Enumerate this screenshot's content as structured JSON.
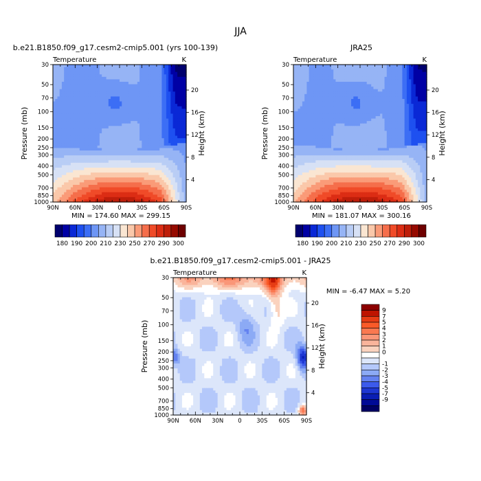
{
  "figure": {
    "title": "JJA"
  },
  "lat_ticks": [
    "90N",
    "60N",
    "30N",
    "0",
    "30S",
    "60S",
    "90S"
  ],
  "pressure_ticks": [
    "30",
    "50",
    "70",
    "100",
    "150",
    "200",
    "250",
    "300",
    "400",
    "500",
    "700",
    "850",
    "1000"
  ],
  "height_ticks": [
    "20",
    "16",
    "12",
    "8",
    "4"
  ],
  "panels": {
    "model": {
      "title": "b.e21.B1850.f09_g17.cesm2-cmip5.001 (yrs 100-139)",
      "left_label": "Temperature",
      "units": "K",
      "ylabel_left": "Pressure (mb)",
      "ylabel_right": "Height (km)",
      "stats": "MIN = 174.60   MAX = 299.15"
    },
    "obs": {
      "title": "JRA25",
      "left_label": "Temperature",
      "units": "K",
      "ylabel_left": "Pressure (mb)",
      "ylabel_right": "Height (km)",
      "stats": "MIN = 181.07   MAX = 300.16"
    },
    "diff": {
      "title": "b.e21.B1850.f09_g17.cesm2-cmip5.001 - JRA25",
      "left_label": "Temperature",
      "units": "K",
      "ylabel_left": "Pressure (mb)",
      "ylabel_right": "Height (km)",
      "stats": "MIN =   -6.47   MAX =    5.20"
    }
  },
  "colorbar_abs": {
    "labels": [
      "180",
      "190",
      "200",
      "210",
      "230",
      "250",
      "270",
      "290",
      "300"
    ],
    "colors": [
      "#00006e",
      "#0000a5",
      "#0a28d6",
      "#1e50f0",
      "#3c6ef5",
      "#6e96f5",
      "#96b4f5",
      "#b9cdf5",
      "#d7e1f5",
      "#fae6d2",
      "#fac8aa",
      "#fa9b78",
      "#f56e4b",
      "#f04b28",
      "#dc2d14",
      "#be1e0a",
      "#960a00",
      "#6e0000"
    ]
  },
  "colorbar_diff": {
    "labels": [
      "9",
      "7",
      "5",
      "4",
      "3",
      "2",
      "1",
      "0",
      "-1",
      "-2",
      "-3",
      "-4",
      "-5",
      "-7",
      "-9"
    ],
    "colors": [
      "#8c0000",
      "#be1400",
      "#e63c14",
      "#fa5a28",
      "#fa7850",
      "#fa9678",
      "#fab49b",
      "#fad2be",
      "#ffffff",
      "#dce6fa",
      "#b4c8fa",
      "#8caaf5",
      "#6482f0",
      "#3c5aeb",
      "#1e37d2",
      "#0a1eb4",
      "#000a96",
      "#000064"
    ]
  },
  "chart_data": [
    {
      "type": "heatmap",
      "title": "b.e21.B1850.f09_g17.cesm2-cmip5.001 (yrs 100-139)",
      "xlabel": "",
      "ylabel": "Pressure (mb)",
      "x": [
        "90N",
        "60N",
        "30N",
        "0",
        "30S",
        "60S",
        "90S"
      ],
      "y": [
        "30",
        "50",
        "70",
        "100",
        "150",
        "200",
        "250",
        "300",
        "400",
        "500",
        "700",
        "850",
        "1000"
      ],
      "z_min": 174.6,
      "z_max": 299.15,
      "units": "K"
    },
    {
      "type": "heatmap",
      "title": "JRA25",
      "xlabel": "",
      "ylabel": "Pressure (mb)",
      "x": [
        "90N",
        "60N",
        "30N",
        "0",
        "30S",
        "60S",
        "90S"
      ],
      "y": [
        "30",
        "50",
        "70",
        "100",
        "150",
        "200",
        "250",
        "300",
        "400",
        "500",
        "700",
        "850",
        "1000"
      ],
      "z_min": 181.07,
      "z_max": 300.16,
      "units": "K"
    },
    {
      "type": "heatmap",
      "title": "b.e21.B1850.f09_g17.cesm2-cmip5.001 - JRA25",
      "xlabel": "",
      "ylabel": "Pressure (mb)",
      "x": [
        "90N",
        "60N",
        "30N",
        "0",
        "30S",
        "60S",
        "90S"
      ],
      "y": [
        "30",
        "50",
        "70",
        "100",
        "150",
        "200",
        "250",
        "300",
        "400",
        "500",
        "700",
        "850",
        "1000"
      ],
      "z_min": -6.47,
      "z_max": 5.2,
      "units": "K"
    }
  ]
}
